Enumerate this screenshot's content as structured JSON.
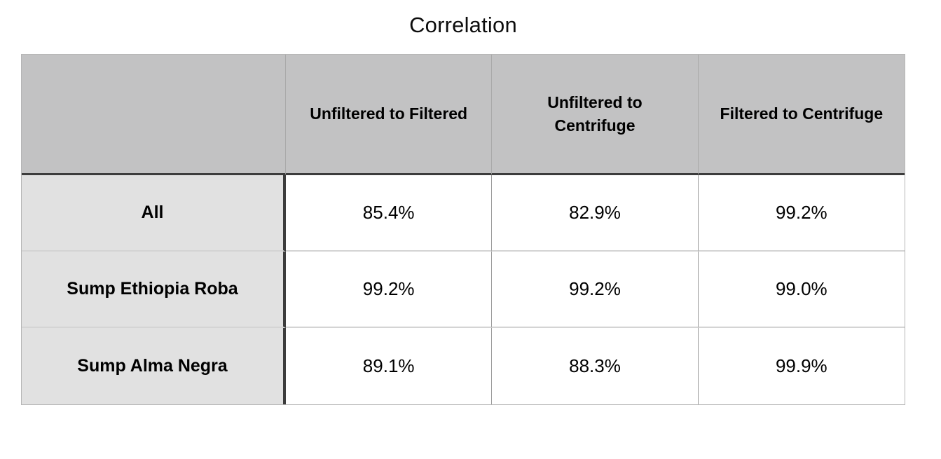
{
  "title": "Correlation",
  "table": {
    "corner_label": "",
    "columns": [
      "Unfiltered to Filtered",
      "Unfiltered to Centrifuge",
      "Filtered to Centrifuge"
    ],
    "rows": [
      {
        "label": "All",
        "values": [
          "85.4%",
          "82.9%",
          "99.2%"
        ]
      },
      {
        "label": "Sump Ethiopia Roba",
        "values": [
          "99.2%",
          "99.2%",
          "99.0%"
        ]
      },
      {
        "label": "Sump Alma Negra",
        "values": [
          "89.1%",
          "88.3%",
          "99.9%"
        ]
      }
    ]
  },
  "chart_data": {
    "type": "table",
    "title": "Correlation",
    "columns": [
      "Unfiltered to Filtered",
      "Unfiltered to Centrifuge",
      "Filtered to Centrifuge"
    ],
    "row_labels": [
      "All",
      "Sump Ethiopia Roba",
      "Sump Alma Negra"
    ],
    "values_percent": [
      [
        85.4,
        82.9,
        99.2
      ],
      [
        99.2,
        99.2,
        99.0
      ],
      [
        89.1,
        88.3,
        99.9
      ]
    ],
    "unit": "%",
    "legend_position": "none",
    "grid": "table-borders"
  },
  "colors": {
    "header_bg": "#c2c2c3",
    "row_label_bg": "#e1e1e1",
    "cell_bg": "#ffffff",
    "dark_rule": "#3c3c3c",
    "row_separator": "#d4d4d4",
    "column_divider": "#9b9b9b",
    "outer_border": "#b5b5b5",
    "text": "#000000"
  }
}
